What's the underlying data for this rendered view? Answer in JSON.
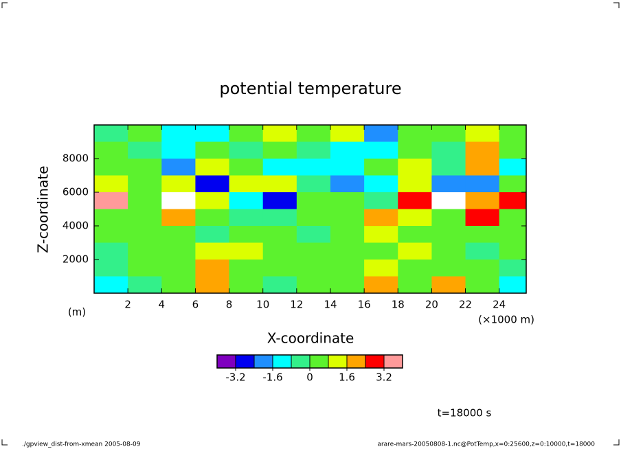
{
  "chart_data": {
    "type": "contour",
    "title": "potential temperature",
    "x_label": "X-coordinate",
    "y_label": "Z-coordinate",
    "x_unit": "(×1000 m)",
    "y_unit": "(m)",
    "xlim": [
      0,
      25.6
    ],
    "xticks": [
      2,
      4,
      6,
      8,
      10,
      12,
      14,
      16,
      18,
      20,
      22,
      24
    ],
    "ylim": [
      0,
      10000
    ],
    "yticks": [
      2000,
      4000,
      6000,
      8000
    ],
    "x": [
      1,
      3,
      5,
      7,
      9,
      11,
      13,
      15,
      17,
      19,
      21,
      23,
      25
    ],
    "y": [
      9500,
      8500,
      7500,
      6500,
      5500,
      4500,
      3500,
      2500,
      1500,
      500
    ],
    "z": [
      [
        -0.4,
        0.4,
        -1.2,
        -1.2,
        0.4,
        1.2,
        0.4,
        1.2,
        -2.0,
        0.4,
        0.4,
        1.2,
        0.4
      ],
      [
        0.4,
        -0.4,
        -1.2,
        0.4,
        -0.4,
        0.4,
        -0.4,
        -1.2,
        -1.2,
        0.4,
        -0.4,
        2.0,
        0.4
      ],
      [
        0.4,
        0.4,
        -2.0,
        1.2,
        0.4,
        -1.2,
        -1.2,
        -1.2,
        0.4,
        1.2,
        -0.4,
        2.0,
        -1.2
      ],
      [
        1.2,
        0.4,
        1.2,
        -2.8,
        1.2,
        1.2,
        -0.4,
        -2.0,
        -1.2,
        1.2,
        -2.0,
        -2.0,
        0.4
      ],
      [
        3.6,
        0.4,
        4.5,
        1.2,
        -1.2,
        -2.8,
        0.4,
        0.4,
        -0.4,
        2.8,
        4.5,
        2.0,
        2.8
      ],
      [
        0.4,
        0.4,
        2.0,
        0.4,
        -0.4,
        -0.4,
        0.4,
        0.4,
        2.0,
        1.2,
        0.4,
        2.8,
        0.4
      ],
      [
        0.4,
        0.4,
        0.4,
        -0.4,
        0.4,
        0.4,
        -0.4,
        0.4,
        1.2,
        0.4,
        0.4,
        0.4,
        0.4
      ],
      [
        -0.4,
        0.4,
        0.4,
        1.2,
        1.2,
        0.4,
        0.4,
        0.4,
        0.4,
        1.2,
        0.4,
        -0.4,
        0.4
      ],
      [
        -0.4,
        0.4,
        0.4,
        2.0,
        0.4,
        0.4,
        0.4,
        0.4,
        1.2,
        0.4,
        0.4,
        0.4,
        -0.4
      ],
      [
        -1.2,
        -0.4,
        0.4,
        2.0,
        0.4,
        -0.4,
        0.4,
        0.4,
        2.0,
        0.4,
        2.0,
        0.4,
        -1.2
      ]
    ],
    "levels": [
      -4.0,
      -3.2,
      -2.4,
      -1.6,
      -0.8,
      0,
      0.8,
      1.6,
      2.4,
      3.2,
      4.0
    ],
    "colors": [
      "#7f00bf",
      "#0000f0",
      "#1f8fff",
      "#00ffff",
      "#33f08a",
      "#5cf22e",
      "#dcff00",
      "#ffa500",
      "#ff0000",
      "#ff9a9a"
    ],
    "colorbar_ticks": [
      -3.2,
      -1.6,
      0,
      1.6,
      3.2
    ],
    "time_label": "t=18000 s",
    "footer_left": "./gpview_dist-from-xmean  2005-08-09",
    "footer_right": "arare-mars-20050808-1.nc@PotTemp,x=0:25600,z=0:10000,t=18000"
  }
}
